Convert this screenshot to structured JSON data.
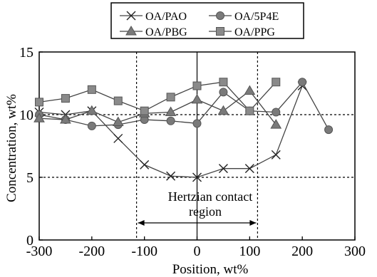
{
  "chart_data": {
    "type": "line",
    "xlabel": "Position, wt%",
    "ylabel": "Concentration, wt%",
    "xlim": [
      -300,
      300
    ],
    "ylim": [
      0,
      15
    ],
    "x_ticks": [
      "-300",
      "-200",
      "-100",
      "0",
      "100",
      "200",
      "300"
    ],
    "y_ticks": [
      "0",
      "5",
      "10",
      "15"
    ],
    "grid": "dotted lines at y=5, y=10 and x=-115, x=115; solid line at x=0",
    "legend_placement": "top, outside plot",
    "annotation": {
      "line1": "Hertzian contact",
      "line2": "region",
      "arrow_from": -115,
      "arrow_to": 115
    },
    "series": [
      {
        "name": "OA/PAO",
        "marker": "x-cross",
        "x": [
          -300,
          -250,
          -200,
          -150,
          -100,
          -50,
          0,
          50,
          100,
          150,
          200
        ],
        "y": [
          10.2,
          10.0,
          10.3,
          8.1,
          6.0,
          5.1,
          5.0,
          5.7,
          5.7,
          6.8,
          12.3
        ]
      },
      {
        "name": "OA/5P4E",
        "marker": "circle",
        "x": [
          -300,
          -250,
          -200,
          -150,
          -100,
          -50,
          0,
          50,
          100,
          150,
          200,
          250
        ],
        "y": [
          10.0,
          9.6,
          9.1,
          9.2,
          9.6,
          9.5,
          9.3,
          11.8,
          10.3,
          10.2,
          12.6,
          8.8
        ]
      },
      {
        "name": "OA/PBG",
        "marker": "triangle",
        "x": [
          -300,
          -250,
          -200,
          -150,
          -100,
          -50,
          0,
          50,
          100,
          150
        ],
        "y": [
          9.7,
          9.6,
          10.3,
          9.4,
          10.1,
          10.2,
          11.2,
          10.3,
          11.9,
          9.2
        ]
      },
      {
        "name": "OA/PPG",
        "marker": "square",
        "x": [
          -300,
          -250,
          -200,
          -150,
          -100,
          -50,
          0,
          50,
          100,
          150
        ],
        "y": [
          11.0,
          11.3,
          12.0,
          11.1,
          10.3,
          11.4,
          12.3,
          12.6,
          10.3,
          12.6
        ]
      }
    ]
  }
}
